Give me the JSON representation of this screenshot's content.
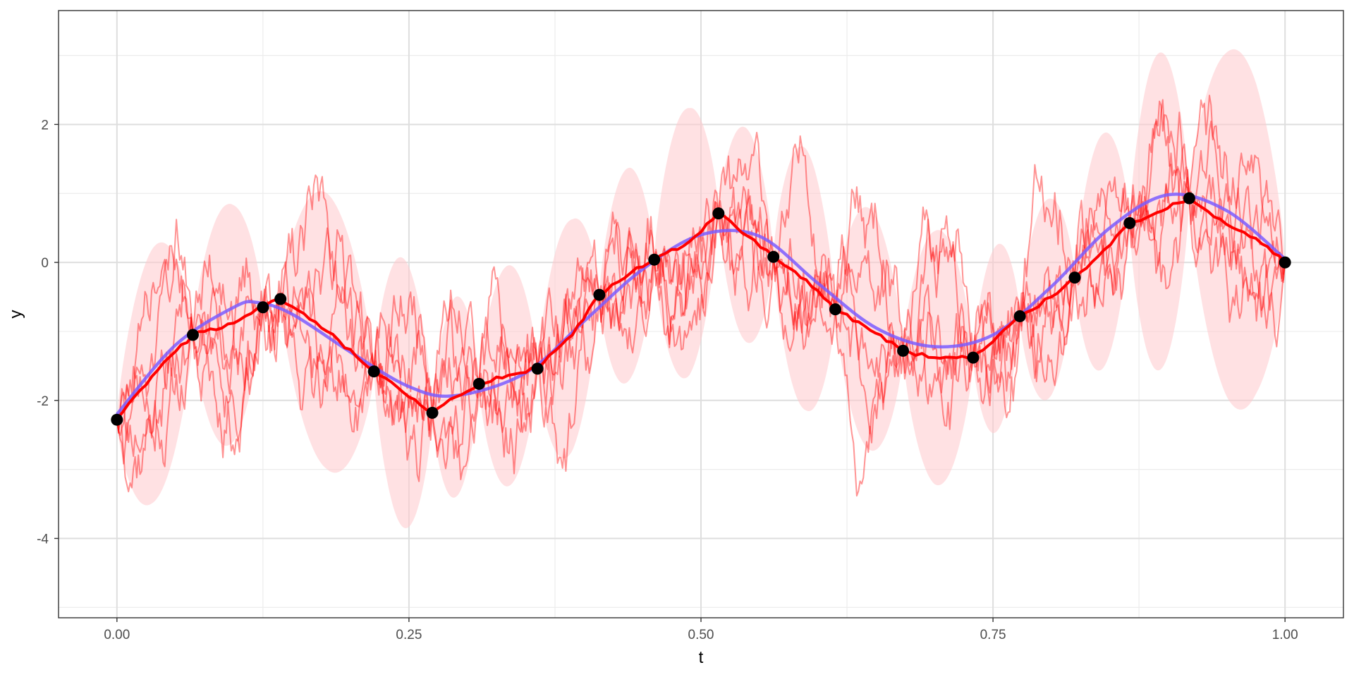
{
  "chart_data": {
    "type": "line",
    "title": "",
    "xlabel": "t",
    "ylabel": "y",
    "xlim": [
      -0.05,
      1.05
    ],
    "ylim": [
      -5.15,
      3.65
    ],
    "x_ticks": [
      0,
      0.25,
      0.5,
      0.75,
      1
    ],
    "x_tick_labels": [
      "0.00",
      "0.25",
      "0.50",
      "0.75",
      "1.00"
    ],
    "y_ticks": [
      -4,
      -2,
      0,
      2
    ],
    "y_tick_labels": [
      "-4",
      "-2",
      "0",
      "2"
    ],
    "grid": true,
    "legend": "none",
    "colors": {
      "true_function": "#7b5cff",
      "mean_path": "#ff0000",
      "sample_paths": "#ff0000",
      "band": "#ffc8cc",
      "observations": "#000000"
    },
    "observations": {
      "x": [
        0.0,
        0.065,
        0.125,
        0.14,
        0.22,
        0.27,
        0.31,
        0.36,
        0.413,
        0.46,
        0.515,
        0.562,
        0.615,
        0.673,
        0.733,
        0.773,
        0.82,
        0.867,
        0.918,
        1.0
      ],
      "y": [
        -2.28,
        -1.05,
        -0.65,
        -0.53,
        -1.58,
        -2.18,
        -1.76,
        -1.54,
        -0.47,
        0.04,
        0.71,
        0.08,
        -0.68,
        -1.28,
        -1.38,
        -0.78,
        -0.22,
        0.57,
        0.93,
        0.0
      ]
    },
    "true_function": {
      "x": [
        0.0,
        0.05,
        0.1,
        0.12,
        0.15,
        0.2,
        0.25,
        0.29,
        0.35,
        0.4,
        0.45,
        0.5,
        0.55,
        0.6,
        0.65,
        0.7,
        0.75,
        0.8,
        0.85,
        0.9,
        0.95,
        1.0
      ],
      "y": [
        -2.2,
        -1.2,
        -0.65,
        -0.58,
        -0.75,
        -1.3,
        -1.8,
        -1.93,
        -1.6,
        -0.85,
        -0.1,
        0.4,
        0.38,
        -0.3,
        -0.95,
        -1.22,
        -1.05,
        -0.35,
        0.5,
        0.98,
        0.75,
        0.05
      ]
    },
    "mean_path": {
      "x": [
        0.0,
        0.03,
        0.065,
        0.1,
        0.125,
        0.14,
        0.18,
        0.22,
        0.25,
        0.27,
        0.29,
        0.31,
        0.34,
        0.36,
        0.39,
        0.413,
        0.44,
        0.46,
        0.49,
        0.515,
        0.54,
        0.562,
        0.59,
        0.615,
        0.64,
        0.673,
        0.7,
        0.733,
        0.75,
        0.773,
        0.8,
        0.82,
        0.845,
        0.867,
        0.89,
        0.918,
        0.95,
        0.975,
        1.0
      ],
      "y": [
        -2.28,
        -1.65,
        -1.05,
        -0.88,
        -0.65,
        -0.53,
        -1.0,
        -1.58,
        -1.95,
        -2.18,
        -1.95,
        -1.76,
        -1.62,
        -1.54,
        -1.05,
        -0.47,
        -0.15,
        0.04,
        0.3,
        0.71,
        0.38,
        0.08,
        -0.25,
        -0.68,
        -0.92,
        -1.28,
        -1.38,
        -1.38,
        -1.15,
        -0.78,
        -0.5,
        -0.22,
        0.18,
        0.57,
        0.72,
        0.93,
        0.55,
        0.35,
        0.0
      ]
    },
    "band_segments": [
      {
        "x0": 0.0,
        "x1": 0.065,
        "h": 1.85
      },
      {
        "x0": 0.065,
        "x1": 0.125,
        "h": 1.75
      },
      {
        "x0": 0.14,
        "x1": 0.22,
        "h": 2.0
      },
      {
        "x0": 0.22,
        "x1": 0.27,
        "h": 1.95
      },
      {
        "x0": 0.27,
        "x1": 0.31,
        "h": 1.45
      },
      {
        "x0": 0.31,
        "x1": 0.36,
        "h": 1.6
      },
      {
        "x0": 0.36,
        "x1": 0.413,
        "h": 1.7
      },
      {
        "x0": 0.413,
        "x1": 0.46,
        "h": 1.55
      },
      {
        "x0": 0.46,
        "x1": 0.515,
        "h": 1.95
      },
      {
        "x0": 0.515,
        "x1": 0.562,
        "h": 1.55
      },
      {
        "x0": 0.562,
        "x1": 0.615,
        "h": 1.9
      },
      {
        "x0": 0.615,
        "x1": 0.673,
        "h": 1.75
      },
      {
        "x0": 0.673,
        "x1": 0.733,
        "h": 1.85
      },
      {
        "x0": 0.733,
        "x1": 0.773,
        "h": 1.35
      },
      {
        "x0": 0.773,
        "x1": 0.82,
        "h": 1.45
      },
      {
        "x0": 0.82,
        "x1": 0.867,
        "h": 1.7
      },
      {
        "x0": 0.867,
        "x1": 0.918,
        "h": 2.3
      },
      {
        "x0": 0.918,
        "x1": 1.0,
        "h": 2.6
      }
    ],
    "sample_paths": [
      {
        "seed": 11,
        "noise": 1.0
      },
      {
        "seed": 23,
        "noise": 1.0
      },
      {
        "seed": 37,
        "noise": 1.1
      },
      {
        "seed": 51,
        "noise": 0.95
      },
      {
        "seed": 73,
        "noise": 1.05
      }
    ]
  }
}
